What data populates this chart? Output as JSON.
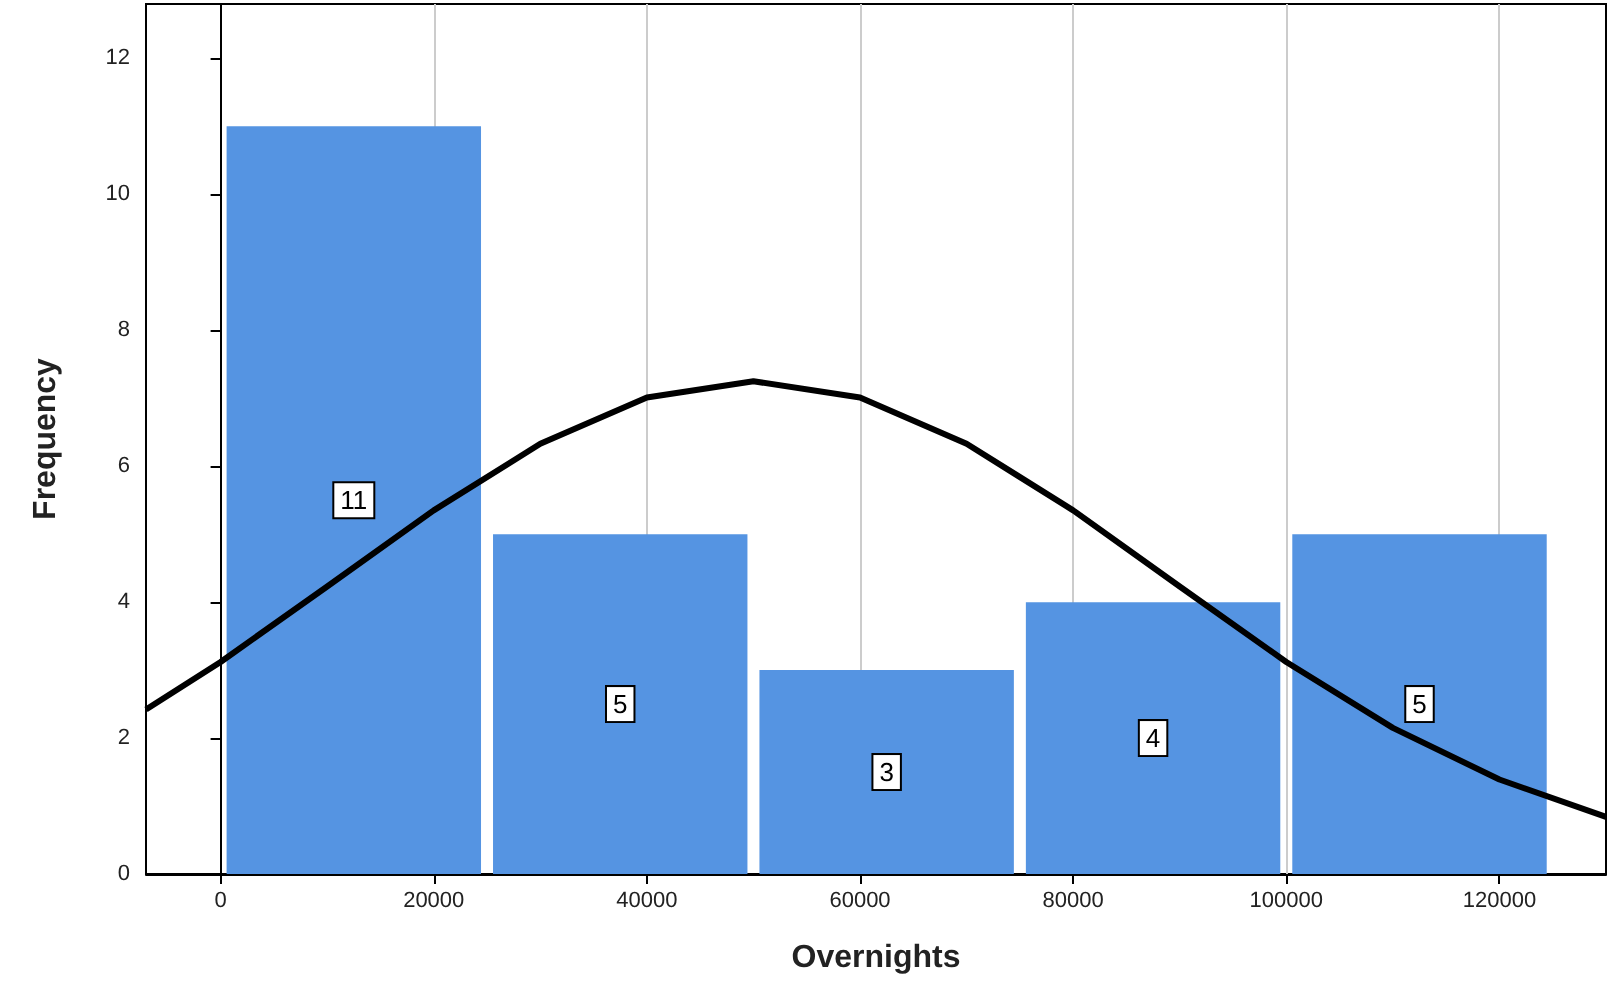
{
  "chart_data": {
    "type": "histogram",
    "xlabel": "Overnights",
    "ylabel": "Frequency",
    "bins": [
      0,
      25000,
      50000,
      75000,
      100000,
      125000
    ],
    "values": [
      11,
      5,
      3,
      4,
      5
    ],
    "color": "#5594e2",
    "value_labels": [
      "11",
      "5",
      "3",
      "4",
      "5"
    ],
    "xlim": [
      -7000,
      130000
    ],
    "xticks": [
      0,
      20000,
      40000,
      60000,
      80000,
      100000,
      120000
    ],
    "ylim": [
      0,
      12.8
    ],
    "yticks": [
      0,
      2,
      4,
      6,
      8,
      10,
      12
    ],
    "grid": "x",
    "series": [
      {
        "type": "line",
        "color": "#000000",
        "marker": "none",
        "line_style": "solid",
        "x": [
          -7000,
          0,
          10000,
          20000,
          30000,
          40000,
          50000,
          60000,
          70000,
          80000,
          90000,
          100000,
          110000,
          120000,
          130000
        ],
        "values": [
          2.42,
          3.12,
          4.23,
          5.35,
          6.33,
          7.01,
          7.25,
          7.01,
          6.33,
          5.35,
          4.23,
          3.12,
          2.15,
          1.39,
          0.84
        ]
      }
    ]
  }
}
